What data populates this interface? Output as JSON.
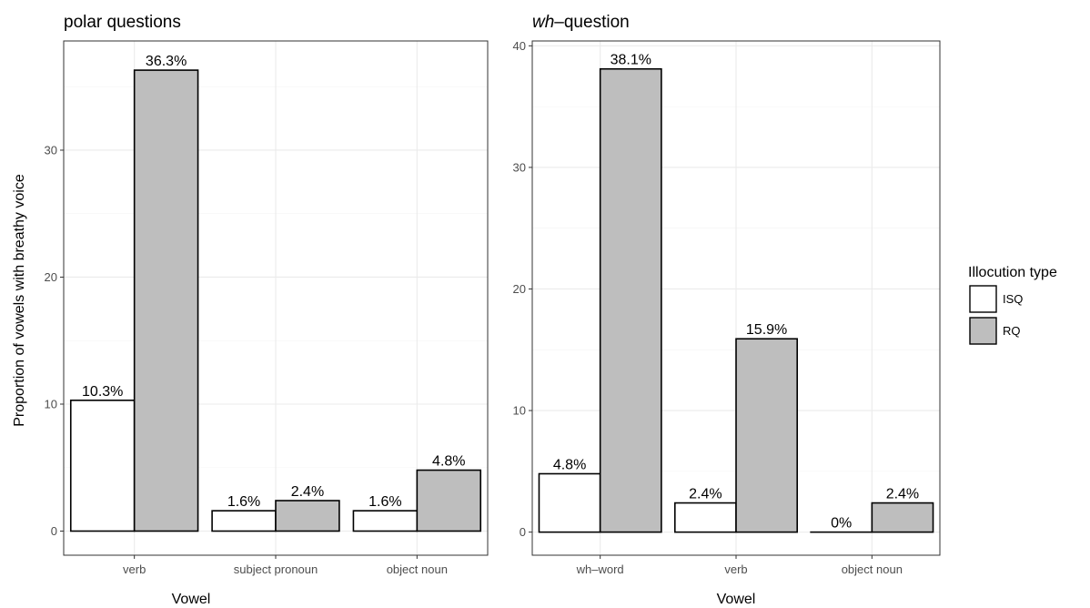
{
  "chart_data": [
    {
      "type": "bar",
      "title": "polar questions",
      "xlabel": "Vowel",
      "ylabel": "Proportion of vowels with breathy voice",
      "categories": [
        "verb",
        "subject pronoun",
        "object noun"
      ],
      "series": [
        {
          "name": "ISQ",
          "values": [
            10.3,
            1.6,
            1.6
          ],
          "labels": [
            "10.3%",
            "1.6%",
            "1.6%"
          ]
        },
        {
          "name": "RQ",
          "values": [
            36.3,
            2.4,
            4.8
          ],
          "labels": [
            "36.3%",
            "2.4%",
            "4.8%"
          ]
        }
      ],
      "ylim": [
        -1.9,
        38.6
      ],
      "yticks": [
        0,
        10,
        20,
        30
      ],
      "ytick_labels": [
        "0",
        "10",
        "20",
        "30"
      ],
      "grid": true
    },
    {
      "type": "bar",
      "title_italic": "wh",
      "title_rest": "–question",
      "xlabel": "Vowel",
      "ylabel": "",
      "categories": [
        "wh–word",
        "verb",
        "object noun"
      ],
      "series": [
        {
          "name": "ISQ",
          "values": [
            4.8,
            2.4,
            0
          ],
          "labels": [
            "4.8%",
            "2.4%",
            "0%"
          ]
        },
        {
          "name": "RQ",
          "values": [
            38.1,
            15.9,
            2.4
          ],
          "labels": [
            "38.1%",
            "15.9%",
            "2.4%"
          ]
        }
      ],
      "ylim": [
        -1.9,
        40.4
      ],
      "yticks": [
        0,
        10,
        20,
        30,
        40
      ],
      "ytick_labels": [
        "0",
        "10",
        "20",
        "30",
        "40"
      ],
      "grid": true
    }
  ],
  "legend": {
    "title": "Illocution type",
    "placement": "right",
    "items": [
      {
        "label": "ISQ",
        "color": "#ffffff"
      },
      {
        "label": "RQ",
        "color": "#bebebe"
      }
    ]
  },
  "colors": {
    "ISQ": "#ffffff",
    "RQ": "#bebebe",
    "frame": "#333333",
    "grid": "#ebebeb"
  }
}
